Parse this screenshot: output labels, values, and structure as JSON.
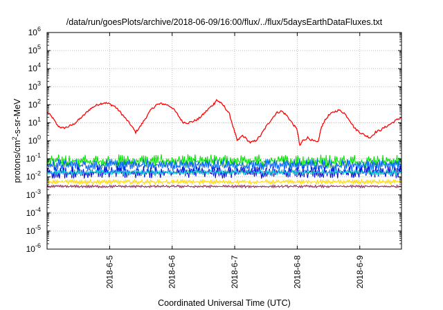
{
  "chart_data": {
    "type": "line",
    "title": "/data/run/goesPlots/archive/2018-06-09/16:00/flux/../flux/5daysEarthDataFluxes.txt",
    "xlabel": "Coordinated Universal Time (UTC)",
    "ylabel_parts": [
      "protons/cm",
      "2",
      "-s-sr-MeV"
    ],
    "y_scale": "log",
    "ylim": [
      1e-06,
      1000000.0
    ],
    "y_ticks": [
      {
        "value": 1e-06,
        "base": "10",
        "exp": "-6"
      },
      {
        "value": 1e-05,
        "base": "10",
        "exp": "-5"
      },
      {
        "value": 0.0001,
        "base": "10",
        "exp": "-4"
      },
      {
        "value": 0.001,
        "base": "10",
        "exp": "-3"
      },
      {
        "value": 0.01,
        "base": "10",
        "exp": "-2"
      },
      {
        "value": 0.1,
        "base": "10",
        "exp": "-1"
      },
      {
        "value": 1,
        "base": "10",
        "exp": "0"
      },
      {
        "value": 10,
        "base": "10",
        "exp": "1"
      },
      {
        "value": 100,
        "base": "10",
        "exp": "2"
      },
      {
        "value": 1000,
        "base": "10",
        "exp": "3"
      },
      {
        "value": 10000,
        "base": "10",
        "exp": "4"
      },
      {
        "value": 100000,
        "base": "10",
        "exp": "5"
      },
      {
        "value": 1000000,
        "base": "10",
        "exp": "6"
      }
    ],
    "x_start": "2018-06-04T00:00",
    "x_end": "2018-06-09T16:00",
    "x_ticks": [
      {
        "value": "2018-06-05T00:00",
        "label": "2018-6-5"
      },
      {
        "value": "2018-06-06T00:00",
        "label": "2018-6-6"
      },
      {
        "value": "2018-06-07T00:00",
        "label": "2018-6-7"
      },
      {
        "value": "2018-06-08T00:00",
        "label": "2018-6-8"
      },
      {
        "value": "2018-06-09T00:00",
        "label": "2018-6-9"
      }
    ],
    "grid": true,
    "legend": "none",
    "series": [
      {
        "color": "#ff0000",
        "style": "line",
        "points": [
          [
            "2018-06-04T00:00",
            40
          ],
          [
            "2018-06-04T02:00",
            20
          ],
          [
            "2018-06-04T04:00",
            7
          ],
          [
            "2018-06-04T06:00",
            5
          ],
          [
            "2018-06-04T08:00",
            6
          ],
          [
            "2018-06-04T10:00",
            8
          ],
          [
            "2018-06-04T12:00",
            14
          ],
          [
            "2018-06-04T14:00",
            25
          ],
          [
            "2018-06-04T16:00",
            50
          ],
          [
            "2018-06-04T18:00",
            80
          ],
          [
            "2018-06-04T20:00",
            110
          ],
          [
            "2018-06-04T22:00",
            130
          ],
          [
            "2018-06-05T00:00",
            110
          ],
          [
            "2018-06-05T02:00",
            80
          ],
          [
            "2018-06-05T04:00",
            40
          ],
          [
            "2018-06-05T06:00",
            18
          ],
          [
            "2018-06-05T08:00",
            8
          ],
          [
            "2018-06-05T10:00",
            3
          ],
          [
            "2018-06-05T12:00",
            7
          ],
          [
            "2018-06-05T14:00",
            20
          ],
          [
            "2018-06-05T16:00",
            55
          ],
          [
            "2018-06-05T18:00",
            100
          ],
          [
            "2018-06-05T20:00",
            115
          ],
          [
            "2018-06-05T22:00",
            100
          ],
          [
            "2018-06-06T00:00",
            70
          ],
          [
            "2018-06-06T02:00",
            30
          ],
          [
            "2018-06-06T04:00",
            11
          ],
          [
            "2018-06-06T06:00",
            10
          ],
          [
            "2018-06-06T08:00",
            12
          ],
          [
            "2018-06-06T10:00",
            16
          ],
          [
            "2018-06-06T12:00",
            30
          ],
          [
            "2018-06-06T14:00",
            60
          ],
          [
            "2018-06-06T16:00",
            110
          ],
          [
            "2018-06-06T17:00",
            180
          ],
          [
            "2018-06-06T18:00",
            150
          ],
          [
            "2018-06-06T20:00",
            80
          ],
          [
            "2018-06-06T22:00",
            30
          ],
          [
            "2018-06-07T00:00",
            3
          ],
          [
            "2018-06-07T01:00",
            1
          ],
          [
            "2018-06-07T03:00",
            2
          ],
          [
            "2018-06-07T06:00",
            0.8
          ],
          [
            "2018-06-07T08:00",
            1
          ],
          [
            "2018-06-07T10:00",
            2
          ],
          [
            "2018-06-07T12:00",
            6
          ],
          [
            "2018-06-07T14:00",
            15
          ],
          [
            "2018-06-07T16:00",
            35
          ],
          [
            "2018-06-07T18:00",
            45
          ],
          [
            "2018-06-07T20:00",
            25
          ],
          [
            "2018-06-07T22:00",
            10
          ],
          [
            "2018-06-08T00:00",
            4
          ],
          [
            "2018-06-08T01:00",
            0.5
          ],
          [
            "2018-06-08T02:00",
            1
          ],
          [
            "2018-06-08T04:00",
            1.5
          ],
          [
            "2018-06-08T06:00",
            1
          ],
          [
            "2018-06-08T08:00",
            0.8
          ],
          [
            "2018-06-08T09:00",
            4
          ],
          [
            "2018-06-08T10:00",
            10
          ],
          [
            "2018-06-08T12:00",
            25
          ],
          [
            "2018-06-08T14:00",
            40
          ],
          [
            "2018-06-08T16:00",
            50
          ],
          [
            "2018-06-08T18:00",
            35
          ],
          [
            "2018-06-08T20:00",
            15
          ],
          [
            "2018-06-08T22:00",
            5
          ],
          [
            "2018-06-09T00:00",
            3
          ],
          [
            "2018-06-09T02:00",
            2
          ],
          [
            "2018-06-09T04:00",
            1.5
          ],
          [
            "2018-06-09T06:00",
            3
          ],
          [
            "2018-06-09T08:00",
            4
          ],
          [
            "2018-06-09T10:00",
            6
          ],
          [
            "2018-06-09T12:00",
            9
          ],
          [
            "2018-06-09T14:00",
            14
          ],
          [
            "2018-06-09T16:00",
            20
          ]
        ]
      },
      {
        "color": "#00e000",
        "style": "noisy-band",
        "low": 0.03,
        "high": 0.18
      },
      {
        "color": "#0060ff",
        "style": "noisy-band",
        "low": 0.02,
        "high": 0.1
      },
      {
        "color": "#0000dd",
        "style": "noisy-band",
        "low": 0.008,
        "high": 0.04
      },
      {
        "color": "#00c8c8",
        "style": "noisy-band",
        "low": 0.013,
        "high": 0.025
      },
      {
        "color": "#ffd700",
        "style": "noisy-band",
        "low": 0.004,
        "high": 0.007
      },
      {
        "color": "#8b2252",
        "style": "noisy-band",
        "low": 0.0025,
        "high": 0.0035
      }
    ]
  }
}
